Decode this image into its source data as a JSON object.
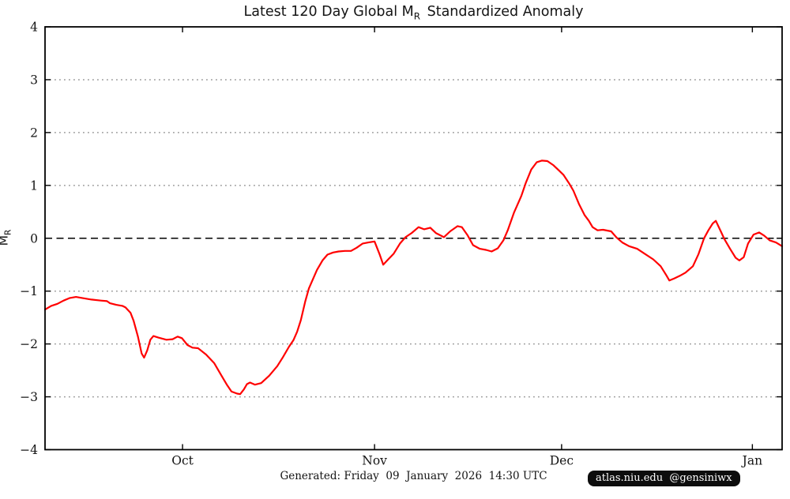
{
  "figure": {
    "footer_generated": "Generated: Friday  09  January  2026  14:30 UTC",
    "badge_text": "atlas.niu.edu  @gensiniwx"
  },
  "chart_data": {
    "type": "line",
    "title": {
      "pre": "Latest 120 Day Global M",
      "sub": "R",
      "post": " Standardized Anomaly"
    },
    "ylabel": {
      "pre": "M",
      "sub": "R"
    },
    "xlabel": "",
    "ylim": [
      -4,
      4
    ],
    "x_range": {
      "min": 0,
      "max": 119,
      "unit": "days",
      "note": "120-day window ending early January 2026"
    },
    "grid": "horizontal dotted gray lines at integer y values except 0",
    "zero_line": {
      "value": 0,
      "style": "dashed",
      "color": "#000000"
    },
    "legend": "none",
    "colors": {
      "line": "#ff0000",
      "grid": "#999999",
      "frame": "#000000"
    },
    "yticks": [
      {
        "value": 4,
        "label": "4"
      },
      {
        "value": 3,
        "label": "3"
      },
      {
        "value": 2,
        "label": "2"
      },
      {
        "value": 1,
        "label": "1"
      },
      {
        "value": 0,
        "label": "0"
      },
      {
        "value": -1,
        "label": "−1"
      },
      {
        "value": -2,
        "label": "−2"
      },
      {
        "value": -3,
        "label": "−3"
      },
      {
        "value": -4,
        "label": "−4"
      }
    ],
    "xticks": [
      {
        "label": "Oct",
        "day": 22.2
      },
      {
        "label": "Nov",
        "day": 53.2
      },
      {
        "label": "Dec",
        "day": 83.4
      },
      {
        "label": "Jan",
        "day": 114.2
      }
    ],
    "series": [
      {
        "name": "120-day global MR standardized anomaly",
        "color": "#ff0000",
        "points": [
          [
            0,
            -1.35
          ],
          [
            1,
            -1.28
          ],
          [
            2,
            -1.24
          ],
          [
            3,
            -1.18
          ],
          [
            4,
            -1.13
          ],
          [
            5,
            -1.11
          ],
          [
            6,
            -1.13
          ],
          [
            7.5,
            -1.16
          ],
          [
            9,
            -1.18
          ],
          [
            10,
            -1.19
          ],
          [
            10.5,
            -1.23
          ],
          [
            11.5,
            -1.26
          ],
          [
            12.5,
            -1.28
          ],
          [
            13,
            -1.31
          ],
          [
            13.8,
            -1.41
          ],
          [
            14.3,
            -1.56
          ],
          [
            15,
            -1.86
          ],
          [
            15.6,
            -2.18
          ],
          [
            16,
            -2.26
          ],
          [
            16.5,
            -2.12
          ],
          [
            17,
            -1.92
          ],
          [
            17.5,
            -1.85
          ],
          [
            18.3,
            -1.88
          ],
          [
            19.6,
            -1.92
          ],
          [
            20.6,
            -1.91
          ],
          [
            21.4,
            -1.86
          ],
          [
            22.1,
            -1.89
          ],
          [
            23,
            -2.02
          ],
          [
            23.8,
            -2.07
          ],
          [
            24.7,
            -2.08
          ],
          [
            26,
            -2.2
          ],
          [
            27.3,
            -2.36
          ],
          [
            28.5,
            -2.6
          ],
          [
            29.4,
            -2.78
          ],
          [
            30.1,
            -2.9
          ],
          [
            31,
            -2.94
          ],
          [
            31.5,
            -2.95
          ],
          [
            32.1,
            -2.86
          ],
          [
            32.6,
            -2.76
          ],
          [
            33.1,
            -2.73
          ],
          [
            33.9,
            -2.77
          ],
          [
            34.9,
            -2.74
          ],
          [
            36.2,
            -2.6
          ],
          [
            37.5,
            -2.42
          ],
          [
            38.4,
            -2.25
          ],
          [
            39.4,
            -2.05
          ],
          [
            40.1,
            -1.93
          ],
          [
            40.7,
            -1.77
          ],
          [
            41.3,
            -1.55
          ],
          [
            42,
            -1.2
          ],
          [
            42.6,
            -0.95
          ],
          [
            43.9,
            -0.6
          ],
          [
            44.8,
            -0.42
          ],
          [
            45.6,
            -0.31
          ],
          [
            46.5,
            -0.27
          ],
          [
            47.4,
            -0.25
          ],
          [
            48.4,
            -0.24
          ],
          [
            49.4,
            -0.24
          ],
          [
            50.3,
            -0.18
          ],
          [
            51.3,
            -0.1
          ],
          [
            52.2,
            -0.08
          ],
          [
            53.2,
            -0.06
          ],
          [
            54,
            -0.3
          ],
          [
            54.6,
            -0.5
          ],
          [
            55.4,
            -0.4
          ],
          [
            56.3,
            -0.29
          ],
          [
            57.3,
            -0.1
          ],
          [
            58.2,
            0.02
          ],
          [
            59.2,
            0.1
          ],
          [
            60.3,
            0.21
          ],
          [
            61.2,
            0.17
          ],
          [
            62.2,
            0.2
          ],
          [
            63.1,
            0.1
          ],
          [
            64.4,
            0.02
          ],
          [
            65.4,
            0.13
          ],
          [
            66.6,
            0.23
          ],
          [
            67.3,
            0.21
          ],
          [
            68.2,
            0.06
          ],
          [
            69.1,
            -0.13
          ],
          [
            70.2,
            -0.2
          ],
          [
            71.2,
            -0.22
          ],
          [
            72.1,
            -0.25
          ],
          [
            73.1,
            -0.19
          ],
          [
            74,
            -0.04
          ],
          [
            74.7,
            0.15
          ],
          [
            75.7,
            0.48
          ],
          [
            76.9,
            0.8
          ],
          [
            77.6,
            1.04
          ],
          [
            78.5,
            1.3
          ],
          [
            79.4,
            1.44
          ],
          [
            80.2,
            1.47
          ],
          [
            81.1,
            1.46
          ],
          [
            82.1,
            1.38
          ],
          [
            83,
            1.28
          ],
          [
            83.7,
            1.2
          ],
          [
            84.6,
            1.04
          ],
          [
            85.3,
            0.9
          ],
          [
            86.2,
            0.65
          ],
          [
            87.1,
            0.44
          ],
          [
            87.8,
            0.33
          ],
          [
            88.4,
            0.21
          ],
          [
            89.2,
            0.15
          ],
          [
            90.1,
            0.16
          ],
          [
            91.4,
            0.13
          ],
          [
            92.3,
            0.01
          ],
          [
            93.2,
            -0.08
          ],
          [
            94.3,
            -0.15
          ],
          [
            95.6,
            -0.2
          ],
          [
            96.9,
            -0.3
          ],
          [
            98.2,
            -0.4
          ],
          [
            99.4,
            -0.53
          ],
          [
            100.3,
            -0.7
          ],
          [
            100.8,
            -0.8
          ],
          [
            101.6,
            -0.76
          ],
          [
            102.5,
            -0.71
          ],
          [
            103.4,
            -0.65
          ],
          [
            104.6,
            -0.53
          ],
          [
            105.5,
            -0.3
          ],
          [
            106.4,
            0
          ],
          [
            107.1,
            0.15
          ],
          [
            107.8,
            0.28
          ],
          [
            108.3,
            0.33
          ],
          [
            109.1,
            0.13
          ],
          [
            109.7,
            -0.02
          ],
          [
            110.6,
            -0.2
          ],
          [
            111.5,
            -0.37
          ],
          [
            112.1,
            -0.42
          ],
          [
            112.8,
            -0.36
          ],
          [
            113.5,
            -0.1
          ],
          [
            114.4,
            0.07
          ],
          [
            115.3,
            0.11
          ],
          [
            116.1,
            0.05
          ],
          [
            117,
            -0.04
          ],
          [
            118,
            -0.08
          ],
          [
            119,
            -0.15
          ]
        ]
      }
    ]
  }
}
